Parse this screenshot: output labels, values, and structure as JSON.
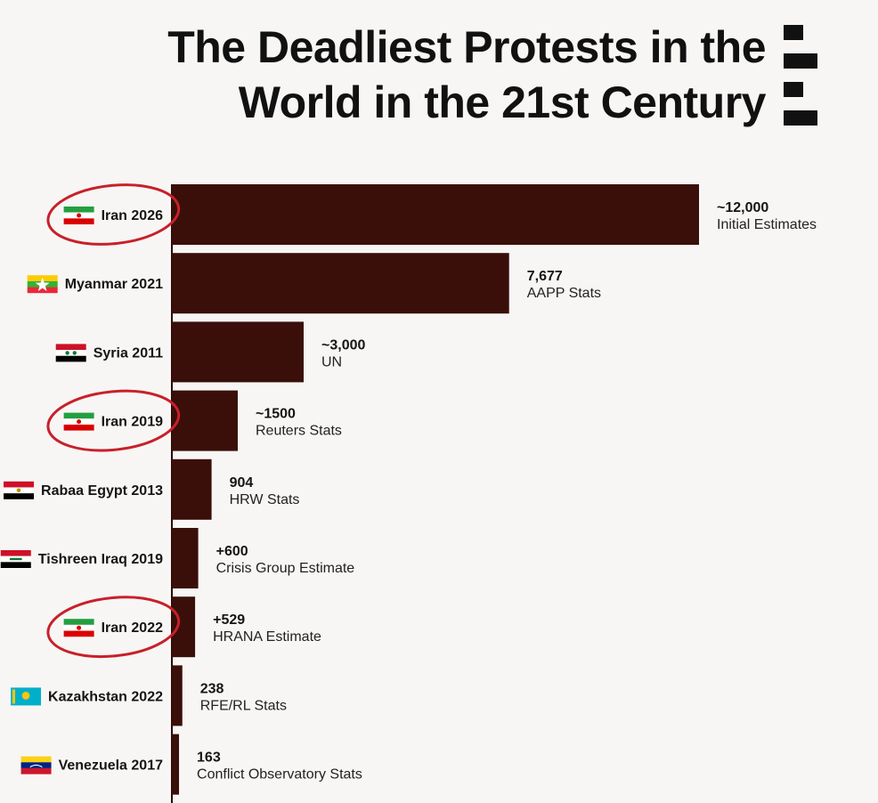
{
  "title": {
    "line1": "The Deadliest Protests in the",
    "line2": "World in the 21st Century"
  },
  "colors": {
    "bar": "#3a0f0a",
    "highlight_circle": "#c8202a",
    "axis": "#2a0a06"
  },
  "logo": {
    "icon": "stacked-bars-logo-icon"
  },
  "chart_data": {
    "type": "bar",
    "orientation": "horizontal",
    "title": "The Deadliest Protests in the World in the 21st Century",
    "xlabel": "",
    "ylabel": "",
    "xlim": [
      0,
      12000
    ],
    "grid": false,
    "categories": [
      "Iran 2026",
      "Myanmar 2021",
      "Syria 2011",
      "Iran 2019",
      "Rabaa Egypt 2013",
      "Tishreen Iraq 2019",
      "Iran 2022",
      "Kazakhstan 2022",
      "Venezuela 2017"
    ],
    "values": [
      12000,
      7677,
      3000,
      1500,
      904,
      600,
      529,
      238,
      163
    ],
    "value_labels": [
      "~12,000",
      "7,677",
      "~3,000",
      "~1500",
      "904",
      "+600",
      "+529",
      "238",
      "163"
    ],
    "sources": [
      "Initial Estimates",
      "AAPP Stats",
      "UN",
      "Reuters Stats",
      "HRW Stats",
      "Crisis Group Estimate",
      "HRANA Estimate",
      "RFE/RL Stats",
      "Conflict Observatory Stats"
    ],
    "flags": [
      "iran",
      "myanmar",
      "syria",
      "iran",
      "egypt",
      "iraq",
      "iran",
      "kazakhstan",
      "venezuela"
    ],
    "highlighted": [
      "Iran 2026",
      "Iran 2019",
      "Iran 2022"
    ]
  }
}
